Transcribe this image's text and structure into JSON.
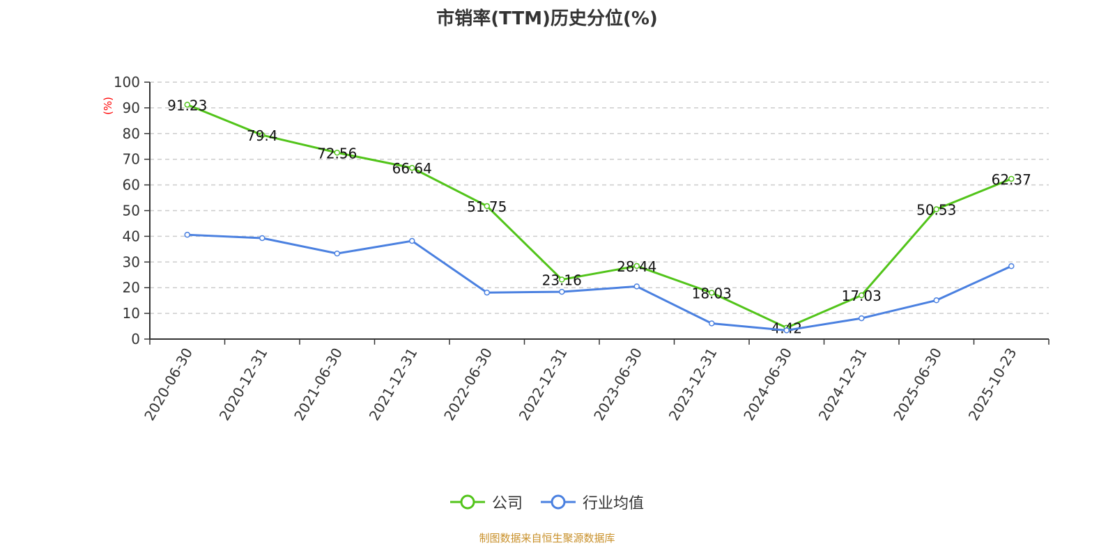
{
  "chart_data": {
    "type": "line",
    "title": "市销率(TTM)历史分位(%)",
    "ylabel": "(%)",
    "ylim": [
      0,
      100
    ],
    "yticks": [
      0,
      10,
      20,
      30,
      40,
      50,
      60,
      70,
      80,
      90,
      100
    ],
    "grid": true,
    "legend_placement": "bottom",
    "categories": [
      "2020-06-30",
      "2020-12-31",
      "2021-06-30",
      "2021-12-31",
      "2022-06-30",
      "2022-12-31",
      "2023-06-30",
      "2023-12-31",
      "2024-06-30",
      "2024-12-31",
      "2025-06-30",
      "2025-10-23"
    ],
    "series": [
      {
        "name": "公司",
        "color": "#52c41a",
        "labels": true,
        "values": [
          91.23,
          79.4,
          72.56,
          66.64,
          51.75,
          23.16,
          28.44,
          18.03,
          4.42,
          17.03,
          50.53,
          62.37
        ]
      },
      {
        "name": "行业均值",
        "color": "#4a80e0",
        "labels": false,
        "values": [
          40.6,
          39.3,
          33.3,
          38.2,
          18.1,
          18.4,
          20.5,
          6.1,
          3.4,
          8.1,
          15.1,
          28.4
        ]
      }
    ]
  },
  "footer": "制图数据来自恒生聚源数据库"
}
